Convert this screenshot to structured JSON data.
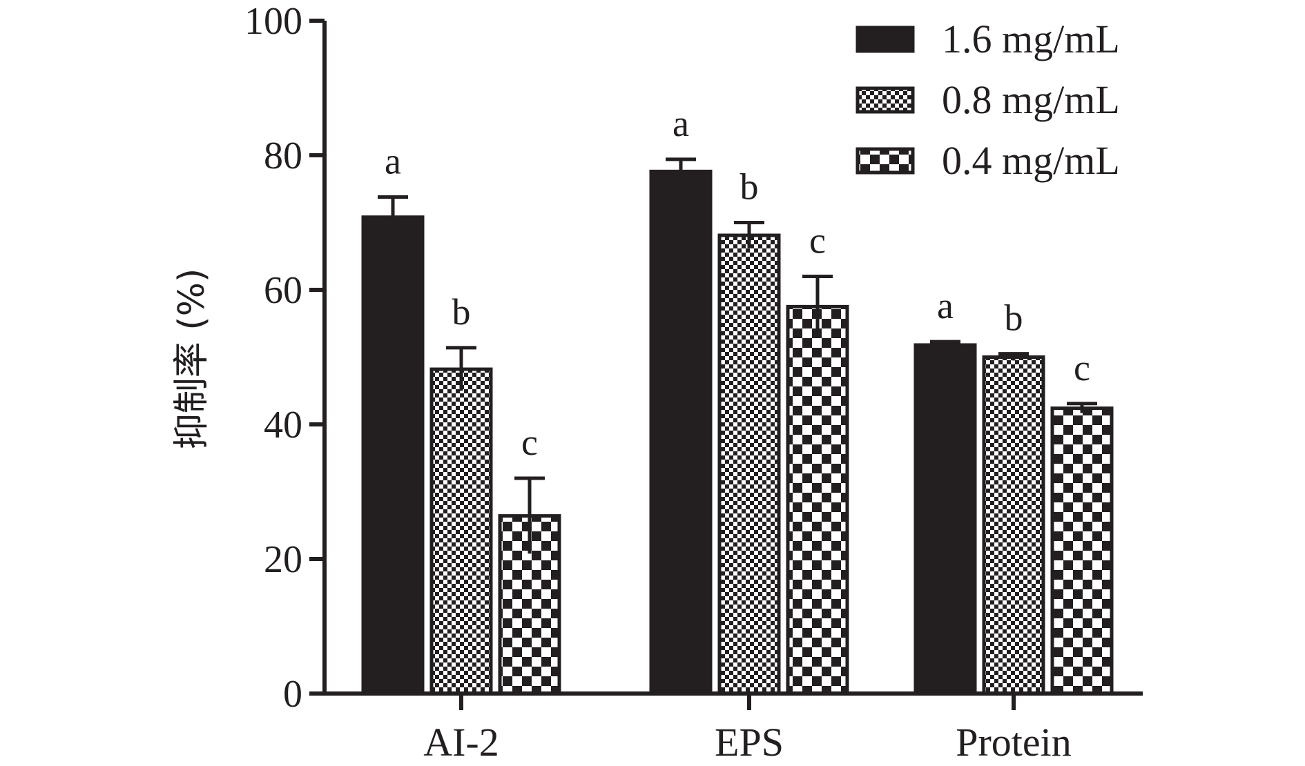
{
  "chart_data": {
    "type": "bar",
    "title": "",
    "xlabel": "",
    "ylabel": "抑制率 (%)",
    "ylim": [
      0,
      100
    ],
    "yticks": [
      0,
      20,
      40,
      60,
      80,
      100
    ],
    "categories": [
      "AI-2",
      "EPS",
      "Protein"
    ],
    "series": [
      {
        "name": "1.6 mg/mL",
        "values": [
          70.8,
          77.6,
          51.8
        ],
        "errors": [
          3.0,
          1.8,
          0.5
        ],
        "labels": [
          "a",
          "a",
          "a"
        ],
        "pattern": "solid",
        "color": "#231f20"
      },
      {
        "name": "0.8 mg/mL",
        "values": [
          48.2,
          68.1,
          50.0
        ],
        "errors": [
          3.2,
          1.9,
          0.5
        ],
        "labels": [
          "b",
          "b",
          "b"
        ],
        "pattern": "fine-checker",
        "color": "#231f20"
      },
      {
        "name": "0.4 mg/mL",
        "values": [
          26.4,
          57.5,
          42.4
        ],
        "errors": [
          5.6,
          4.5,
          0.7
        ],
        "labels": [
          "c",
          "c",
          "c"
        ],
        "pattern": "coarse-checker",
        "color": "#231f20"
      }
    ],
    "legend_position": "top-right",
    "grid": false
  }
}
